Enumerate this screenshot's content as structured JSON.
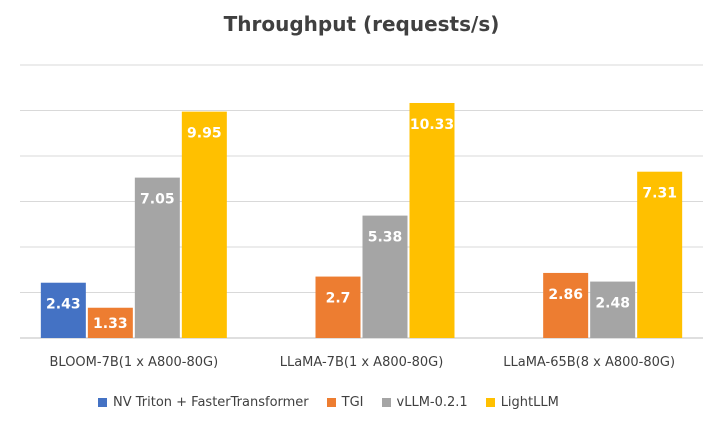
{
  "chart_data": {
    "type": "bar",
    "title": "Throughput (requests/s)",
    "categories": [
      "BLOOM-7B(1 x A800-80G)",
      "LLaMA-7B(1 x A800-80G)",
      "LLaMA-65B(8 x A800-80G)"
    ],
    "series": [
      {
        "name": "NV Triton + FasterTransformer",
        "color": "#4472C4",
        "values": [
          2.43,
          null,
          null
        ]
      },
      {
        "name": "TGI",
        "color": "#ED7D31",
        "values": [
          1.33,
          2.7,
          2.86
        ]
      },
      {
        "name": "vLLM-0.2.1",
        "color": "#A5A5A5",
        "values": [
          7.05,
          5.38,
          2.48
        ]
      },
      {
        "name": "LightLLM",
        "color": "#FFC000",
        "values": [
          9.95,
          10.33,
          7.31
        ]
      }
    ],
    "ylim": [
      0,
      12
    ],
    "grid": true,
    "legend_position": "bottom",
    "xlabel": "",
    "ylabel": ""
  }
}
